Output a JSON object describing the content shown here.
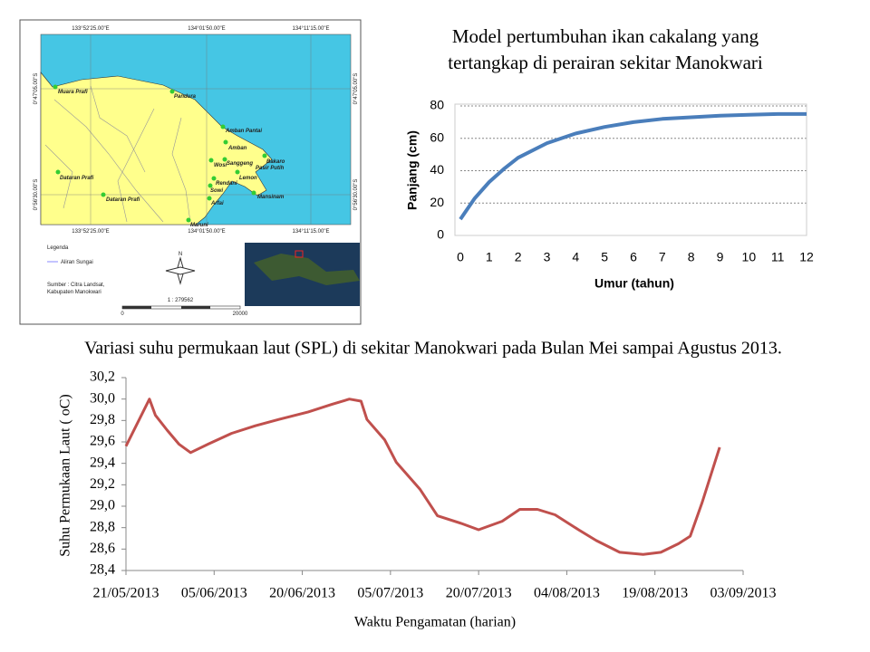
{
  "map": {
    "top_labels": [
      "133°52'25.00\"E",
      "134°01'50.00\"E",
      "134°11'15.00\"E"
    ],
    "bottom_labels": [
      "133°52'25.00\"E",
      "134°01'50.00\"E",
      "134°11'15.00\"E"
    ],
    "left_labels": [
      "0°47'05.00\"S",
      "0°56'30.00\"S"
    ],
    "right_labels": [
      "0°47'05.00\"S",
      "0°56'30.00\"S"
    ],
    "places": [
      "Muara Prafi",
      "Pandura",
      "Amban Pantai",
      "Amban",
      "Wosi",
      "Sanggeng",
      "Bakaro",
      "Pasir Putih",
      "Rendani",
      "Lemon",
      "Sowi",
      "Mansinam",
      "Arfai",
      "Maruni",
      "Dataran Prafi",
      "Dataran Prafi"
    ],
    "legend_title": "Legenda",
    "legend_item": "Aliran Sungai",
    "north": "N",
    "source": [
      "Sumber : Citra Landsat,",
      "Kabupaten Manokwari"
    ],
    "scale": "1 : 279562",
    "scalebar": [
      "0",
      "20000"
    ]
  },
  "caption": "Variasi suhu permukaan laut (SPL) di sekitar Manokwari pada Bulan Mei sampai Agustus 2013.",
  "chart_data": [
    {
      "type": "line",
      "title": "Model pertumbuhan ikan cakalang yang tertangkap di perairan sekitar Manokwari",
      "x_label": "Umur (tahun)",
      "y_label": "Panjang  (cm)",
      "x": [
        0,
        0.5,
        1,
        1.5,
        2,
        3,
        4,
        5,
        6,
        7,
        8,
        9,
        10,
        11,
        12
      ],
      "values": [
        10,
        23,
        33,
        41,
        48,
        57,
        63,
        67,
        70,
        72,
        73,
        74,
        74.5,
        75,
        75
      ],
      "color": "#4a7ebb",
      "xlim": [
        0,
        12
      ],
      "xticks": [
        0,
        1,
        2,
        3,
        4,
        5,
        6,
        7,
        8,
        9,
        10,
        11,
        12
      ],
      "ylim": [
        0,
        80
      ],
      "yticks": [
        0,
        20,
        40,
        60,
        80
      ],
      "grid": true
    },
    {
      "type": "line",
      "x_label": "Waktu Pengamatan (harian)",
      "y_label": "Suhu Permukaan Laut ( oC)",
      "x": [
        "2013-05-21",
        "2013-05-25",
        "2013-05-26",
        "2013-05-28",
        "2013-05-30",
        "2013-06-01",
        "2013-06-04",
        "2013-06-08",
        "2013-06-12",
        "2013-06-16",
        "2013-06-21",
        "2013-06-25",
        "2013-06-28",
        "2013-06-30",
        "2013-07-01",
        "2013-07-04",
        "2013-07-06",
        "2013-07-10",
        "2013-07-13",
        "2013-07-17",
        "2013-07-20",
        "2013-07-24",
        "2013-07-27",
        "2013-07-30",
        "2013-08-02",
        "2013-08-06",
        "2013-08-09",
        "2013-08-13",
        "2013-08-17",
        "2013-08-20",
        "2013-08-23",
        "2013-08-25",
        "2013-08-27",
        "2013-08-30"
      ],
      "values": [
        29.56,
        30.0,
        29.85,
        29.71,
        29.58,
        29.5,
        29.58,
        29.68,
        29.75,
        29.81,
        29.88,
        29.95,
        30.0,
        29.98,
        29.81,
        29.62,
        29.41,
        29.16,
        28.91,
        28.84,
        28.78,
        28.86,
        28.97,
        28.97,
        28.92,
        28.78,
        28.68,
        28.57,
        28.55,
        28.57,
        28.65,
        28.72,
        29.03,
        29.55
      ],
      "color": "#c0504d",
      "xlim": [
        "2013-05-21",
        "2013-09-03"
      ],
      "xticks": [
        {
          "value": "2013-05-21",
          "label": "21/05/2013"
        },
        {
          "value": "2013-06-05",
          "label": "05/06/2013"
        },
        {
          "value": "2013-06-20",
          "label": "20/06/2013"
        },
        {
          "value": "2013-07-05",
          "label": "05/07/2013"
        },
        {
          "value": "2013-07-20",
          "label": "20/07/2013"
        },
        {
          "value": "2013-08-04",
          "label": "04/08/2013"
        },
        {
          "value": "2013-08-19",
          "label": "19/08/2013"
        },
        {
          "value": "2013-09-03",
          "label": "03/09/2013"
        }
      ],
      "ylim": [
        28.4,
        30.2
      ],
      "yticks": [
        {
          "value": 28.4,
          "label": "28,4"
        },
        {
          "value": 28.6,
          "label": "28,6"
        },
        {
          "value": 28.8,
          "label": "28,8"
        },
        {
          "value": 29.0,
          "label": "29,0"
        },
        {
          "value": 29.2,
          "label": "29,2"
        },
        {
          "value": 29.4,
          "label": "29,4"
        },
        {
          "value": 29.6,
          "label": "29,6"
        },
        {
          "value": 29.8,
          "label": "29,8"
        },
        {
          "value": 30.0,
          "label": "30,0"
        },
        {
          "value": 30.2,
          "label": "30,2"
        }
      ],
      "grid": false
    }
  ]
}
